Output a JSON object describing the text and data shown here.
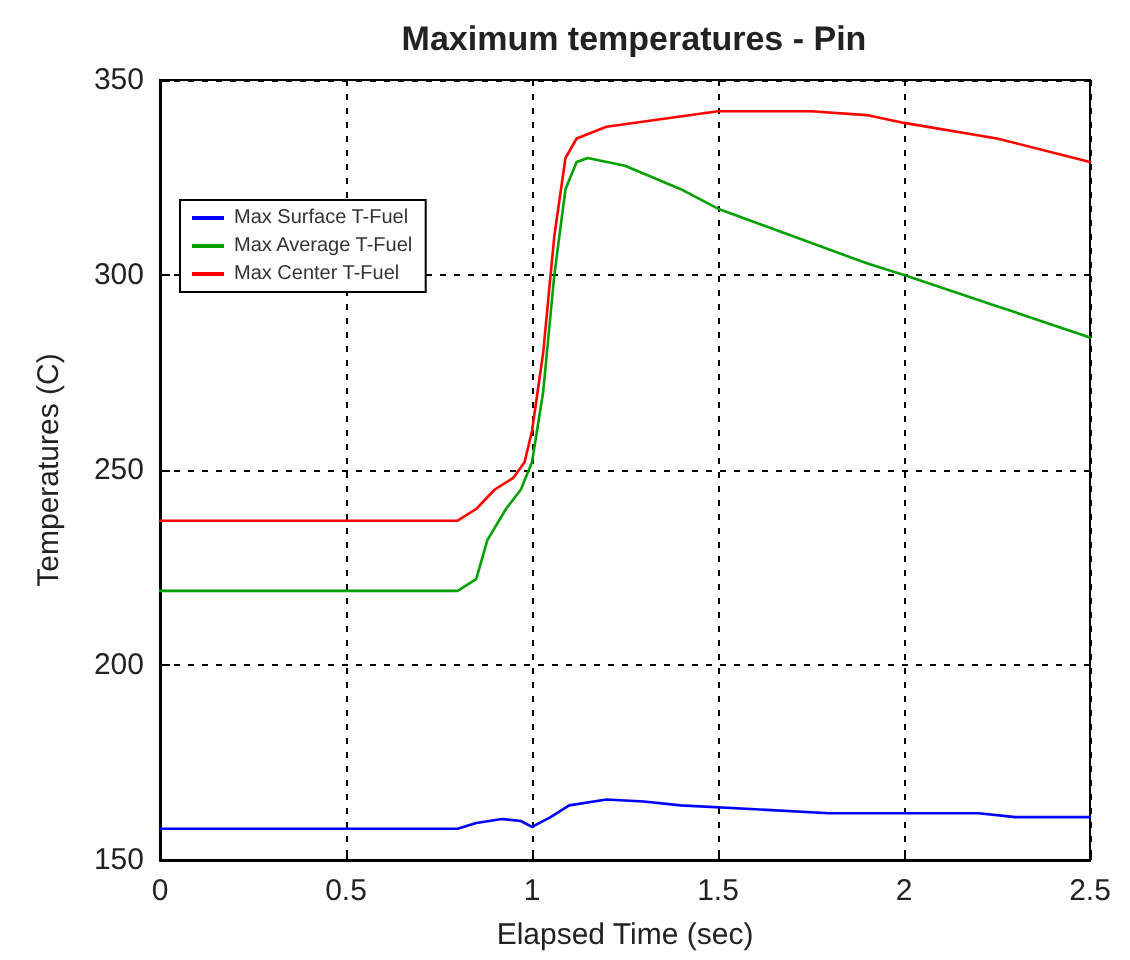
{
  "chart_data": {
    "type": "line",
    "title": "Maximum temperatures - Pin",
    "xlabel": "Elapsed Time (sec)",
    "ylabel": "Temperatures (C)",
    "xlim": [
      0,
      2.5
    ],
    "xticks": [
      0,
      0.5,
      1,
      1.5,
      2,
      2.5
    ],
    "ylim": [
      150,
      350
    ],
    "yticks": [
      150,
      200,
      250,
      300,
      350
    ],
    "grid": true,
    "legend": "top left",
    "marker": "none",
    "line_style": "solid",
    "series": [
      {
        "name": "Max Surface T-Fuel",
        "color": "#0000ff",
        "x": [
          0,
          0.8,
          0.85,
          0.92,
          0.97,
          1.0,
          1.05,
          1.1,
          1.2,
          1.3,
          1.4,
          1.6,
          1.8,
          2.2,
          2.3,
          2.5
        ],
        "values": [
          158,
          158,
          159.5,
          160.5,
          160,
          158.5,
          161,
          164,
          165.5,
          165,
          164,
          163,
          162,
          162,
          161,
          161
        ]
      },
      {
        "name": "Max Average T-Fuel",
        "color": "#00a000",
        "x": [
          0,
          0.8,
          0.85,
          0.88,
          0.93,
          0.97,
          1.0,
          1.03,
          1.06,
          1.09,
          1.12,
          1.15,
          1.25,
          1.4,
          1.5,
          1.7,
          1.9,
          2.0,
          2.25,
          2.5
        ],
        "values": [
          219,
          219,
          222,
          232,
          240,
          245,
          252,
          270,
          300,
          322,
          329,
          330,
          328,
          322,
          317,
          310,
          303,
          300,
          292,
          284
        ]
      },
      {
        "name": "Max Center T-Fuel",
        "color": "#ff0000",
        "x": [
          0,
          0.8,
          0.85,
          0.9,
          0.95,
          0.98,
          1.0,
          1.03,
          1.06,
          1.09,
          1.12,
          1.2,
          1.35,
          1.5,
          1.75,
          1.9,
          2.0,
          2.25,
          2.5
        ],
        "values": [
          237,
          237,
          240,
          245,
          248,
          252,
          260,
          280,
          310,
          330,
          335,
          338,
          340,
          342,
          342,
          341,
          339,
          335,
          329
        ]
      }
    ]
  }
}
